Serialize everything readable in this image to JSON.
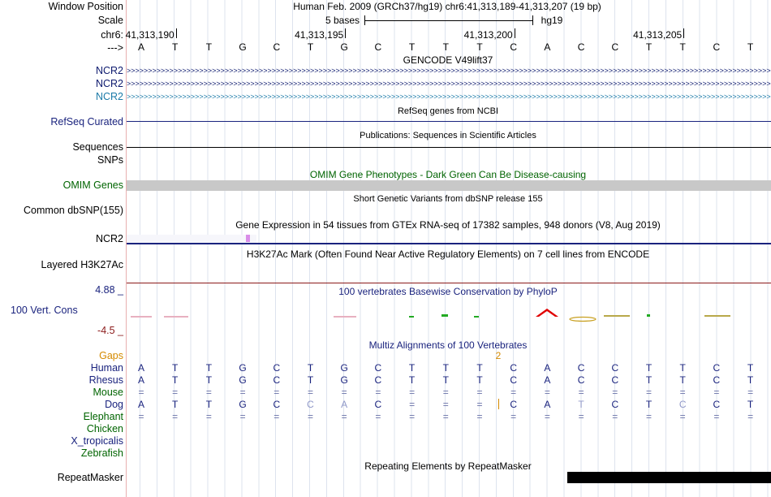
{
  "header": {
    "window_position_label": "Window Position",
    "window_position_text": "Human Feb. 2009 (GRCh37/hg19)   chr6:41,313,189-41,313,207 (19 bp)",
    "scale_label": "Scale",
    "scale_text": "5 bases",
    "assembly": "hg19",
    "chrom_label": "chr6:",
    "strand_label": "--->",
    "positions": [
      "41,313,190",
      "41,313,195",
      "41,313,200",
      "41,313,205"
    ]
  },
  "sequence": [
    "A",
    "T",
    "T",
    "G",
    "C",
    "T",
    "G",
    "C",
    "T",
    "T",
    "T",
    "C",
    "A",
    "C",
    "C",
    "T",
    "T",
    "C",
    "T"
  ],
  "tracks": {
    "gencode": {
      "title": "GENCODE V49lift37",
      "rows": [
        "NCR2",
        "NCR2",
        "NCR2"
      ],
      "arrow_glyph": ">"
    },
    "refseq": {
      "title": "RefSeq genes from NCBI",
      "label": "RefSeq Curated"
    },
    "publications": {
      "title": "Publications: Sequences in Scientific Articles",
      "label": "Sequences"
    },
    "snps_label": "SNPs",
    "omim": {
      "title": "OMIM Gene Phenotypes - Dark Green Can Be Disease-causing",
      "label": "OMIM Genes"
    },
    "dbsnp": {
      "title": "Short Genetic Variants from dbSNP release 155",
      "label": "Common dbSNP(155)"
    },
    "gtex": {
      "title": "Gene Expression in 54 tissues from GTEx RNA-seq of 17382 samples, 948 donors (V8, Aug 2019)",
      "label": "NCR2"
    },
    "h3k27ac": {
      "title": "H3K27Ac Mark (Often Found Near Active Regulatory Elements) on 7 cell lines from ENCODE",
      "label": "Layered H3K27Ac"
    },
    "conservation": {
      "title": "100 vertebrates Basewise Conservation by PhyloP",
      "label": "100 Vert. Cons",
      "max": "4.88 _",
      "min": "-4.5 _"
    },
    "multiz": {
      "title": "Multiz Alignments of 100 Vertebrates",
      "gaps_label": "Gaps",
      "gap_count": "2",
      "species": [
        {
          "name": "Human",
          "bases": [
            "A",
            "T",
            "T",
            "G",
            "C",
            "T",
            "G",
            "C",
            "T",
            "T",
            "T",
            "C",
            "A",
            "C",
            "C",
            "T",
            "T",
            "C",
            "T"
          ]
        },
        {
          "name": "Rhesus",
          "bases": [
            "A",
            "T",
            "T",
            "G",
            "C",
            "T",
            "G",
            "C",
            "T",
            "T",
            "T",
            "C",
            "A",
            "C",
            "C",
            "T",
            "T",
            "C",
            "T"
          ]
        },
        {
          "name": "Mouse",
          "bases": [
            "=",
            "=",
            "=",
            "=",
            "=",
            "=",
            "=",
            "=",
            "=",
            "=",
            "=",
            "=",
            "=",
            "=",
            "=",
            "=",
            "=",
            "=",
            "="
          ]
        },
        {
          "name": "Dog",
          "bases": [
            "A",
            "T",
            "T",
            "G",
            "C",
            "C",
            "A",
            "C",
            "=",
            "=",
            "=",
            "C",
            "A",
            "T",
            "C",
            "T",
            "C",
            "C",
            "T"
          ]
        },
        {
          "name": "Elephant",
          "bases": [
            "=",
            "=",
            "=",
            "=",
            "=",
            "=",
            "=",
            "=",
            "=",
            "=",
            "=",
            "=",
            "=",
            "=",
            "=",
            "=",
            "=",
            "=",
            "="
          ]
        },
        {
          "name": "Chicken",
          "bases": []
        },
        {
          "name": "X_tropicalis",
          "bases": []
        },
        {
          "name": "Zebrafish",
          "bases": []
        }
      ]
    },
    "repeatmasker": {
      "title": "Repeating Elements by RepeatMasker",
      "label": "RepeatMasker"
    }
  },
  "colors": {
    "blue_label": "#1a237e",
    "dark_green": "#006400",
    "gencode_dark": "#0d1a6e",
    "gencode_teal": "#1b7aa8",
    "gaps_orange": "#d48a00",
    "cons_neg": "#8b1a1a",
    "omim_gray": "#c8c8c8"
  }
}
